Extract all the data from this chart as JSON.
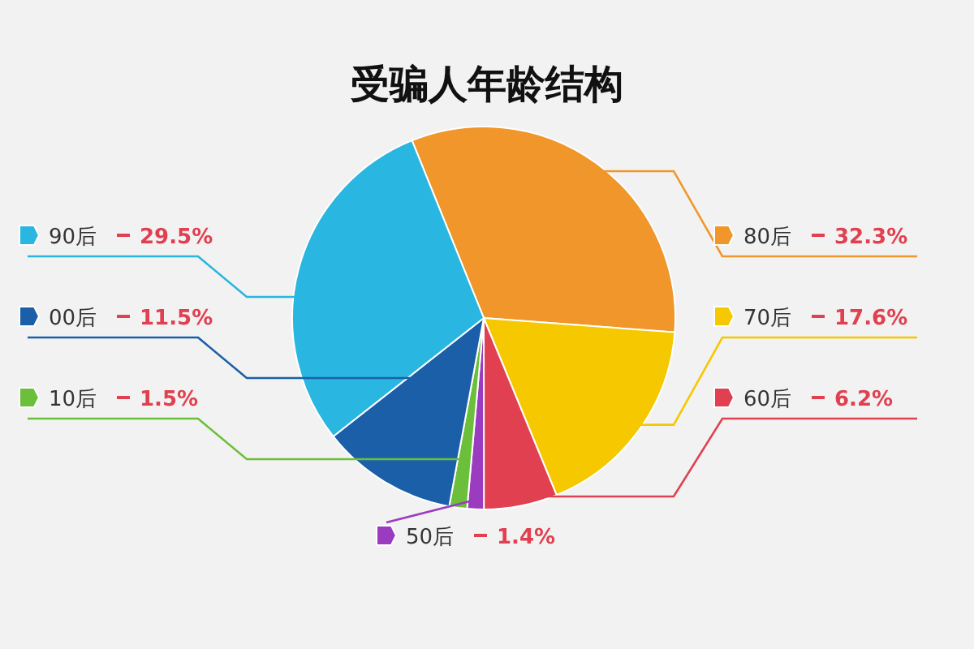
{
  "chart_data": {
    "type": "pie",
    "title": "受骗人年龄结构",
    "categories": [
      "80后",
      "70后",
      "60后",
      "50后",
      "10后",
      "00后",
      "90后"
    ],
    "values": [
      32.3,
      17.6,
      6.2,
      1.4,
      1.5,
      11.5,
      29.5
    ],
    "value_labels": [
      "32.3%",
      "17.6%",
      "6.2%",
      "1.4%",
      "1.5%",
      "11.5%",
      "29.5%"
    ],
    "colors": [
      "#f0962a",
      "#f5c800",
      "#e0404f",
      "#9b3cc0",
      "#6cbf3a",
      "#1a5fa8",
      "#29b6e0"
    ],
    "legend": "left"
  }
}
